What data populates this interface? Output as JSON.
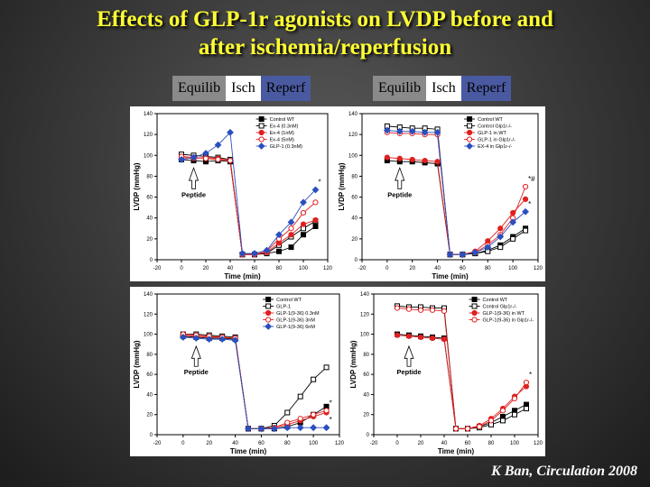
{
  "slide": {
    "title_line1": "Effects of GLP-1r agonists on LVDP before and",
    "title_line2": "after ischemia/reperfusion",
    "phases": [
      "Equilib",
      "Isch",
      "Reperf"
    ],
    "citation": "K Ban, Circulation 2008",
    "colors": {
      "title": "#ffff33",
      "equilib": "#8a8a8a",
      "isch": "#ffffff",
      "reperf": "#4a5aa0"
    }
  },
  "chart_data": [
    {
      "type": "line",
      "xlabel": "Time (min)",
      "ylabel": "LVDP (mmHg)",
      "xlim": [
        -20,
        120
      ],
      "ylim": [
        0,
        140
      ],
      "xticks": [
        "-20",
        "0",
        "20",
        "40",
        "60",
        "80",
        "100",
        "120"
      ],
      "yticks": [
        "0",
        "20",
        "40",
        "60",
        "80",
        "100",
        "120",
        "140"
      ],
      "x": [
        0,
        10,
        20,
        30,
        40,
        50,
        60,
        70,
        80,
        90,
        100,
        110
      ],
      "annotation": "Peptide",
      "marks": [
        "*"
      ],
      "series": [
        {
          "name": "Control WT",
          "color": "#000000",
          "marker": "square",
          "filled": true,
          "values": [
            96,
            95,
            94,
            95,
            94,
            5,
            5,
            6,
            8,
            12,
            24,
            32
          ]
        },
        {
          "name": "Ex-4 (0.3nM)",
          "color": "#000000",
          "marker": "square",
          "filled": false,
          "values": [
            101,
            100,
            99,
            98,
            96,
            5,
            5,
            6,
            14,
            22,
            30,
            37
          ]
        },
        {
          "name": "Ex-4 (1nM)",
          "color": "#e02020",
          "marker": "circle",
          "filled": true,
          "values": [
            98,
            97,
            98,
            97,
            95,
            5,
            5,
            7,
            16,
            24,
            34,
            38
          ]
        },
        {
          "name": "Ex-4 (5nM)",
          "color": "#e02020",
          "marker": "circle",
          "filled": false,
          "values": [
            99,
            98,
            97,
            96,
            95,
            5,
            5,
            8,
            20,
            30,
            45,
            55
          ]
        },
        {
          "name": "GLP-1 (0.3nM)",
          "color": "#2a4fc0",
          "marker": "diamond",
          "filled": true,
          "values": [
            96,
            98,
            102,
            110,
            122,
            6,
            6,
            9,
            24,
            36,
            55,
            67
          ]
        }
      ]
    },
    {
      "type": "line",
      "xlabel": "Time (min)",
      "ylabel": "LVDP (mmHg)",
      "xlim": [
        -20,
        120
      ],
      "ylim": [
        0,
        140
      ],
      "xticks": [
        "-20",
        "0",
        "20",
        "40",
        "60",
        "80",
        "100",
        "120"
      ],
      "yticks": [
        "0",
        "20",
        "40",
        "60",
        "80",
        "100",
        "120",
        "140"
      ],
      "x": [
        0,
        10,
        20,
        30,
        40,
        50,
        60,
        70,
        80,
        90,
        100,
        110
      ],
      "annotation": "Peptide",
      "marks": [
        "*",
        "*#"
      ],
      "series": [
        {
          "name": "Control WT",
          "color": "#000000",
          "marker": "square",
          "filled": true,
          "values": [
            95,
            94,
            94,
            93,
            92,
            5,
            5,
            6,
            9,
            14,
            22,
            30
          ]
        },
        {
          "name": "Control Glp1r-/-",
          "color": "#000000",
          "marker": "square",
          "filled": false,
          "values": [
            128,
            127,
            126,
            126,
            125,
            5,
            5,
            6,
            8,
            12,
            20,
            28
          ]
        },
        {
          "name": "GLP-1 in WT",
          "color": "#e02020",
          "marker": "circle",
          "filled": true,
          "values": [
            98,
            97,
            96,
            95,
            94,
            5,
            5,
            8,
            18,
            30,
            45,
            58
          ]
        },
        {
          "name": "GLP-1 in Glp1r-/-",
          "color": "#e02020",
          "marker": "circle",
          "filled": false,
          "values": [
            122,
            121,
            121,
            120,
            120,
            5,
            5,
            7,
            14,
            24,
            40,
            70
          ]
        },
        {
          "name": "EX-4 in Glp1r-/-",
          "color": "#2a4fc0",
          "marker": "diamond",
          "filled": true,
          "values": [
            124,
            123,
            123,
            122,
            122,
            5,
            5,
            7,
            12,
            22,
            36,
            46
          ]
        }
      ]
    },
    {
      "type": "line",
      "xlabel": "Time (min)",
      "ylabel": "LVDP (mmHg)",
      "xlim": [
        -20,
        120
      ],
      "ylim": [
        0,
        140
      ],
      "xticks": [
        "-20",
        "0",
        "20",
        "40",
        "60",
        "80",
        "100",
        "120"
      ],
      "yticks": [
        "0",
        "20",
        "40",
        "60",
        "80",
        "100",
        "120",
        "140"
      ],
      "x": [
        0,
        10,
        20,
        30,
        40,
        50,
        60,
        70,
        80,
        90,
        100,
        110
      ],
      "annotation": "Peptide",
      "marks": [
        "*",
        "*"
      ],
      "series": [
        {
          "name": "Control WT",
          "color": "#000000",
          "marker": "square",
          "filled": true,
          "values": [
            98,
            97,
            96,
            96,
            95,
            6,
            6,
            6,
            8,
            12,
            20,
            28
          ]
        },
        {
          "name": "GLP-1",
          "color": "#000000",
          "marker": "square",
          "filled": false,
          "values": [
            100,
            100,
            99,
            98,
            97,
            6,
            6,
            9,
            22,
            38,
            55,
            67
          ]
        },
        {
          "name": "GLP-1(9-36) 0.3nM",
          "color": "#e02020",
          "marker": "circle",
          "filled": true,
          "values": [
            99,
            98,
            97,
            97,
            96,
            6,
            6,
            7,
            10,
            14,
            18,
            22
          ]
        },
        {
          "name": "GLP-1(9-36) 3nM",
          "color": "#e02020",
          "marker": "circle",
          "filled": false,
          "values": [
            100,
            99,
            98,
            97,
            96,
            6,
            6,
            7,
            12,
            16,
            20,
            24
          ]
        },
        {
          "name": "GLP-1(9-36) 6nM",
          "color": "#2a4fc0",
          "marker": "diamond",
          "filled": true,
          "values": [
            97,
            96,
            95,
            95,
            94,
            6,
            6,
            6,
            7,
            7,
            7,
            7
          ]
        }
      ]
    },
    {
      "type": "line",
      "xlabel": "Time (min)",
      "ylabel": "LVDP (mmHg)",
      "xlim": [
        -20,
        120
      ],
      "ylim": [
        0,
        140
      ],
      "xticks": [
        "-20",
        "0",
        "20",
        "40",
        "60",
        "80",
        "100",
        "120"
      ],
      "yticks": [
        "0",
        "20",
        "40",
        "60",
        "80",
        "100",
        "120",
        "140"
      ],
      "x": [
        0,
        10,
        20,
        30,
        40,
        50,
        60,
        70,
        80,
        90,
        100,
        110
      ],
      "annotation": "Peptide",
      "marks": [
        "*"
      ],
      "series": [
        {
          "name": "Control WT",
          "color": "#000000",
          "marker": "square",
          "filled": true,
          "values": [
            100,
            99,
            98,
            97,
            96,
            6,
            6,
            8,
            12,
            18,
            24,
            30
          ]
        },
        {
          "name": "Control Glp1r-/-",
          "color": "#000000",
          "marker": "square",
          "filled": false,
          "values": [
            128,
            127,
            127,
            126,
            126,
            6,
            6,
            7,
            10,
            14,
            20,
            26
          ]
        },
        {
          "name": "GLP-1(9-36) in WT",
          "color": "#e02020",
          "marker": "circle",
          "filled": true,
          "values": [
            99,
            98,
            97,
            96,
            95,
            6,
            6,
            9,
            16,
            26,
            38,
            48
          ]
        },
        {
          "name": "GLP-1(9-36) in Glp1r-/-",
          "color": "#e02020",
          "marker": "circle",
          "filled": false,
          "values": [
            126,
            125,
            124,
            124,
            123,
            6,
            6,
            8,
            14,
            24,
            36,
            52
          ]
        }
      ]
    }
  ]
}
